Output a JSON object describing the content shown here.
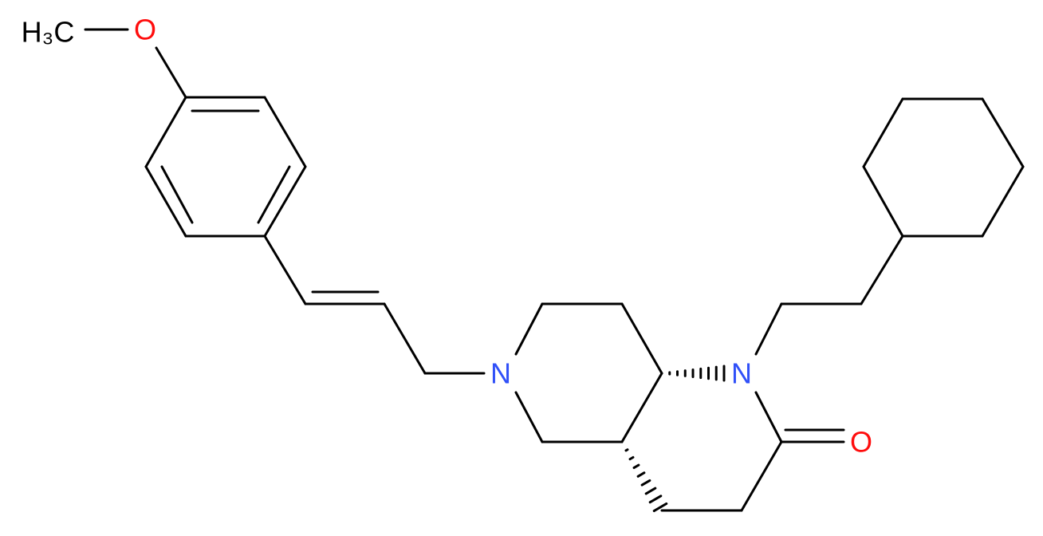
{
  "atoms": [
    {
      "label": "H₃C"
    },
    {
      "label": "O"
    },
    {
      "label": "N"
    },
    {
      "label": "N"
    },
    {
      "label": "O"
    }
  ]
}
